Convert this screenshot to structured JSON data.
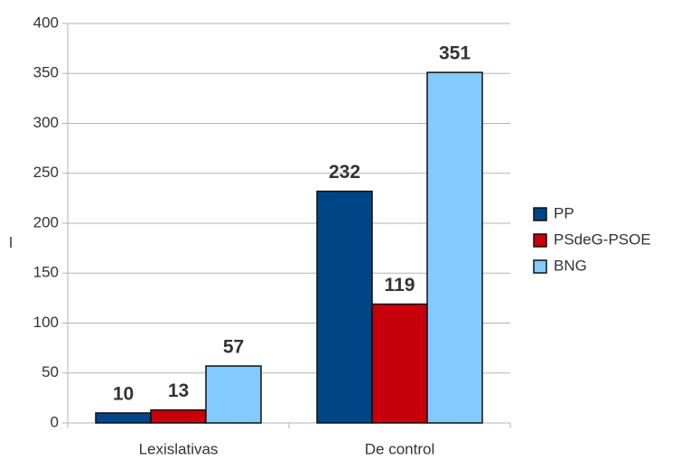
{
  "chart_data": {
    "type": "bar",
    "categories": [
      "Lexislativas",
      "De control"
    ],
    "series": [
      {
        "name": "PP",
        "color": "#004586",
        "values": [
          10,
          232
        ]
      },
      {
        "name": "PSdeG-PSOE",
        "color": "#c5000b",
        "values": [
          13,
          119
        ]
      },
      {
        "name": "BNG",
        "color": "#83caff",
        "values": [
          57,
          351
        ]
      }
    ],
    "ylim": [
      0,
      400
    ],
    "yticks": [
      0,
      50,
      100,
      150,
      200,
      250,
      300,
      350,
      400
    ],
    "grid": true,
    "legend": "right"
  }
}
